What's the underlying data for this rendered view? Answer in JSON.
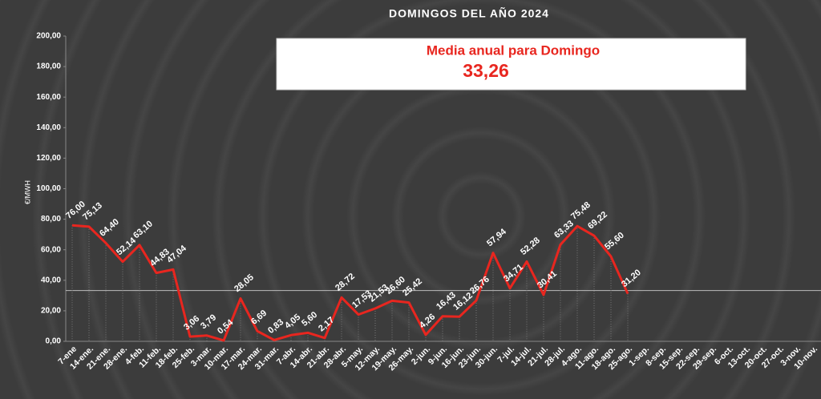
{
  "chart_data": {
    "type": "line",
    "title": "DOMINGOS DEL AÑO 2024",
    "y_label": "€/MWH",
    "categories": [
      "7-ene",
      "14-ene.",
      "21-ene.",
      "28-ene.",
      "4-feb.",
      "11-feb.",
      "18-feb.",
      "25-feb.",
      "3-mar.",
      "10-mar.",
      "17-mar.",
      "24-mar.",
      "31-mar.",
      "7-abr.",
      "14-abr.",
      "21-abr.",
      "28-abr.",
      "5-may.",
      "12-may.",
      "19-may.",
      "26-may.",
      "2-jun.",
      "9-jun.",
      "16-jun.",
      "23-jun.",
      "30-jun.",
      "7-jul.",
      "14-jul.",
      "21-jul.",
      "28-jul.",
      "4-ago.",
      "11-ago.",
      "18-ago.",
      "25-ago.",
      "1-sep.",
      "8-sep.",
      "15-sep.",
      "22-sep.",
      "29-sep.",
      "6-oct.",
      "13-oct.",
      "20-oct.",
      "27-oct.",
      "3-nov.",
      "10-nov."
    ],
    "values": [
      76.0,
      75.13,
      64.4,
      52.14,
      63.1,
      44.83,
      47.04,
      3.06,
      3.79,
      0.54,
      28.05,
      6.69,
      0.83,
      4.05,
      5.6,
      2.17,
      28.72,
      17.53,
      21.53,
      26.6,
      25.42,
      4.26,
      16.43,
      16.12,
      26.76,
      57.94,
      34.71,
      52.28,
      30.41,
      63.33,
      75.48,
      69.22,
      55.6,
      31.2,
      null,
      null,
      null,
      null,
      null,
      null,
      null,
      null,
      null,
      null,
      null
    ],
    "value_labels": [
      "76,00",
      "75,13",
      "64,40",
      "52,14",
      "63,10",
      "44,83",
      "47,04",
      "3,06",
      "3,79",
      "0,54",
      "28,05",
      "6,69",
      "0,83",
      "4,05",
      "5,60",
      "2,17",
      "28,72",
      "17,53",
      "21,53",
      "26,60",
      "25,42",
      "4,26",
      "16,43",
      "16,12",
      "26,76",
      "57,94",
      "34,71",
      "52,28",
      "30,41",
      "63,33",
      "75,48",
      "69,22",
      "55,60",
      "31,20",
      null,
      null,
      null,
      null,
      null,
      null,
      null,
      null,
      null,
      null,
      null
    ],
    "color": "#e8261f",
    "ylim": [
      0,
      200
    ],
    "yticks": [
      {
        "value": 0,
        "label": "0,00"
      },
      {
        "value": 20,
        "label": "20,00"
      },
      {
        "value": 40,
        "label": "40,00"
      },
      {
        "value": 60,
        "label": "60,00"
      },
      {
        "value": 80,
        "label": "80,00"
      },
      {
        "value": 100,
        "label": "100,00"
      },
      {
        "value": 120,
        "label": "120,00"
      },
      {
        "value": 140,
        "label": "140,00"
      },
      {
        "value": 160,
        "label": "160,00"
      },
      {
        "value": 180,
        "label": "180,00"
      },
      {
        "value": 200,
        "label": "200,00"
      }
    ],
    "average": {
      "label": "Media anual para Domingo",
      "value": 33.26,
      "value_label": "33,26"
    }
  }
}
